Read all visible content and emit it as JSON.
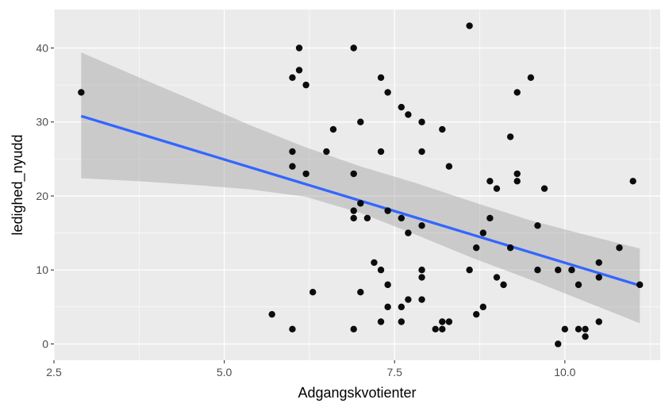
{
  "chart_data": {
    "type": "scatter",
    "title": "",
    "xlabel": "Adgangskvotienter",
    "ylabel": "ledighed_nyudd",
    "xlim": [
      2.5,
      11.4
    ],
    "ylim": [
      -2.2,
      45.2
    ],
    "grid": true,
    "x_ticks": [
      2.5,
      5.0,
      7.5,
      10.0
    ],
    "x_tick_labels": [
      "2.5",
      "5.0",
      "7.5",
      "10.0"
    ],
    "y_ticks": [
      0,
      10,
      20,
      30,
      40
    ],
    "y_tick_labels": [
      "0",
      "10",
      "20",
      "30",
      "40"
    ],
    "points": [
      {
        "x": 2.9,
        "y": 34
      },
      {
        "x": 5.7,
        "y": 4
      },
      {
        "x": 6.0,
        "y": 36
      },
      {
        "x": 6.0,
        "y": 26
      },
      {
        "x": 6.0,
        "y": 24
      },
      {
        "x": 6.0,
        "y": 2
      },
      {
        "x": 6.1,
        "y": 40
      },
      {
        "x": 6.1,
        "y": 37
      },
      {
        "x": 6.2,
        "y": 35
      },
      {
        "x": 6.2,
        "y": 23
      },
      {
        "x": 6.3,
        "y": 7
      },
      {
        "x": 6.5,
        "y": 26
      },
      {
        "x": 6.6,
        "y": 29
      },
      {
        "x": 6.9,
        "y": 40
      },
      {
        "x": 6.9,
        "y": 23
      },
      {
        "x": 6.9,
        "y": 18
      },
      {
        "x": 6.9,
        "y": 17
      },
      {
        "x": 6.9,
        "y": 2
      },
      {
        "x": 7.0,
        "y": 30
      },
      {
        "x": 7.0,
        "y": 19
      },
      {
        "x": 7.0,
        "y": 7
      },
      {
        "x": 7.1,
        "y": 17
      },
      {
        "x": 7.2,
        "y": 11
      },
      {
        "x": 7.3,
        "y": 36
      },
      {
        "x": 7.3,
        "y": 26
      },
      {
        "x": 7.3,
        "y": 10
      },
      {
        "x": 7.3,
        "y": 3
      },
      {
        "x": 7.4,
        "y": 34
      },
      {
        "x": 7.4,
        "y": 18
      },
      {
        "x": 7.4,
        "y": 8
      },
      {
        "x": 7.4,
        "y": 5
      },
      {
        "x": 7.6,
        "y": 32
      },
      {
        "x": 7.6,
        "y": 17
      },
      {
        "x": 7.6,
        "y": 5
      },
      {
        "x": 7.6,
        "y": 3
      },
      {
        "x": 7.7,
        "y": 31
      },
      {
        "x": 7.7,
        "y": 15
      },
      {
        "x": 7.7,
        "y": 6
      },
      {
        "x": 7.9,
        "y": 30
      },
      {
        "x": 7.9,
        "y": 26
      },
      {
        "x": 7.9,
        "y": 16
      },
      {
        "x": 7.9,
        "y": 10
      },
      {
        "x": 7.9,
        "y": 9
      },
      {
        "x": 7.9,
        "y": 6
      },
      {
        "x": 8.1,
        "y": 2
      },
      {
        "x": 8.2,
        "y": 29
      },
      {
        "x": 8.2,
        "y": 3
      },
      {
        "x": 8.2,
        "y": 2
      },
      {
        "x": 8.3,
        "y": 24
      },
      {
        "x": 8.3,
        "y": 3
      },
      {
        "x": 8.6,
        "y": 43
      },
      {
        "x": 8.6,
        "y": 10
      },
      {
        "x": 8.7,
        "y": 13
      },
      {
        "x": 8.7,
        "y": 4
      },
      {
        "x": 8.8,
        "y": 15
      },
      {
        "x": 8.8,
        "y": 5
      },
      {
        "x": 8.9,
        "y": 22
      },
      {
        "x": 8.9,
        "y": 17
      },
      {
        "x": 9.0,
        "y": 21
      },
      {
        "x": 9.0,
        "y": 9
      },
      {
        "x": 9.1,
        "y": 8
      },
      {
        "x": 9.2,
        "y": 28
      },
      {
        "x": 9.2,
        "y": 13
      },
      {
        "x": 9.3,
        "y": 34
      },
      {
        "x": 9.3,
        "y": 23
      },
      {
        "x": 9.3,
        "y": 22
      },
      {
        "x": 9.5,
        "y": 36
      },
      {
        "x": 9.6,
        "y": 16
      },
      {
        "x": 9.6,
        "y": 10
      },
      {
        "x": 9.7,
        "y": 21
      },
      {
        "x": 9.9,
        "y": 10
      },
      {
        "x": 9.9,
        "y": 0
      },
      {
        "x": 10.0,
        "y": 2
      },
      {
        "x": 10.1,
        "y": 10
      },
      {
        "x": 10.2,
        "y": 8
      },
      {
        "x": 10.2,
        "y": 2
      },
      {
        "x": 10.3,
        "y": 2
      },
      {
        "x": 10.3,
        "y": 1
      },
      {
        "x": 10.5,
        "y": 11
      },
      {
        "x": 10.5,
        "y": 9
      },
      {
        "x": 10.5,
        "y": 3
      },
      {
        "x": 10.8,
        "y": 13
      },
      {
        "x": 11.0,
        "y": 22
      },
      {
        "x": 11.1,
        "y": 8
      }
    ],
    "trend_line": {
      "method": "lm",
      "color": "#3366FF",
      "x": [
        2.9,
        11.1
      ],
      "y": [
        30.8,
        7.9
      ]
    },
    "confidence_band": {
      "color": "#999999",
      "x": [
        2.9,
        3.73,
        4.55,
        5.37,
        6.19,
        7.0,
        7.83,
        8.65,
        9.46,
        10.28,
        11.1
      ],
      "lower": [
        22.4,
        22.0,
        21.5,
        20.9,
        19.9,
        17.7,
        14.7,
        11.6,
        8.8,
        5.8,
        2.8
      ],
      "upper": [
        39.4,
        36.1,
        32.9,
        29.6,
        26.6,
        24.0,
        21.7,
        19.2,
        16.8,
        14.8,
        12.9
      ]
    },
    "colors": {
      "panel_background": "#EBEBEB",
      "grid": "#FFFFFF",
      "point": "#000000"
    }
  }
}
